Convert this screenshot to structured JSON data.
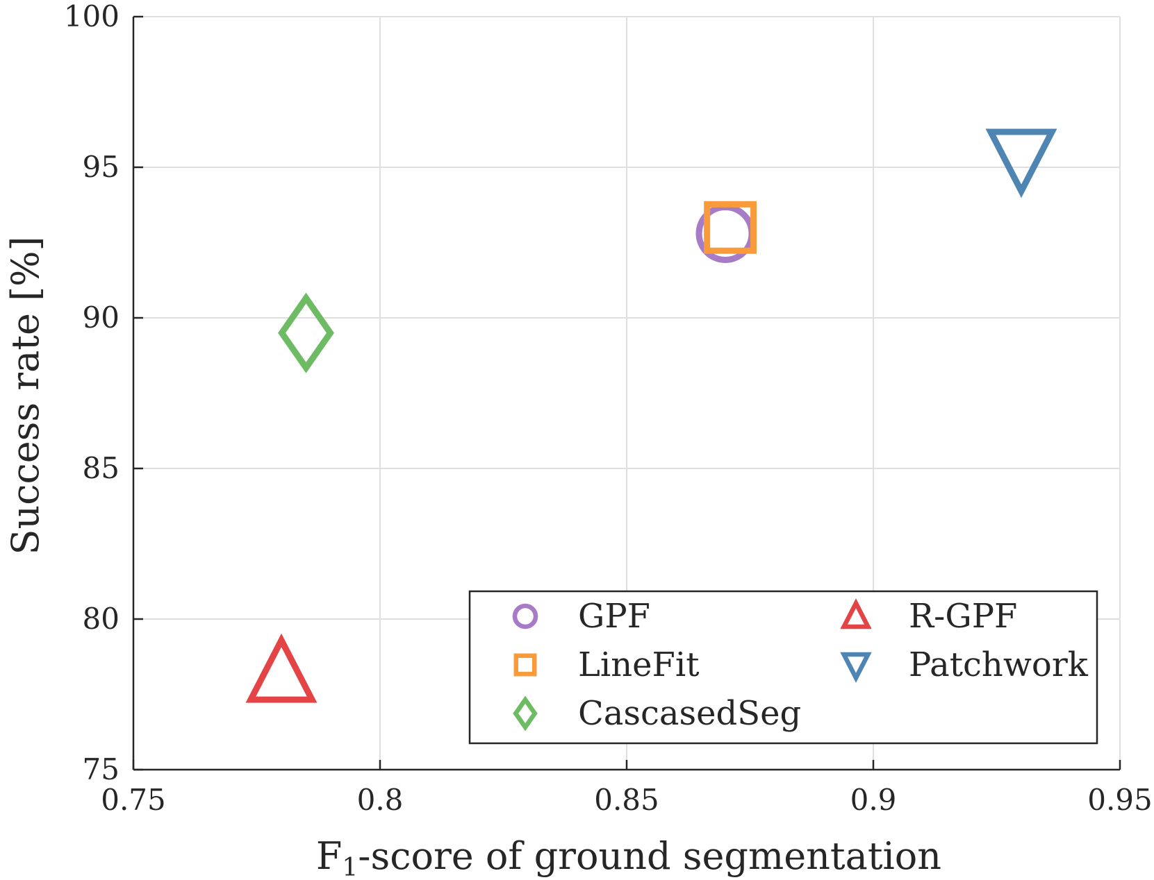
{
  "chart_data": {
    "type": "scatter",
    "xlabel_main": "F",
    "xlabel_sub": "1",
    "xlabel_rest": "-score of ground segmentation",
    "ylabel": "Success rate [%]",
    "xlim": [
      0.75,
      0.95
    ],
    "ylim": [
      75,
      100
    ],
    "xticks": [
      "0.75",
      "0.8",
      "0.85",
      "0.9",
      "0.95"
    ],
    "yticks": [
      "75",
      "80",
      "85",
      "90",
      "95",
      "100"
    ],
    "grid": true,
    "legend_position": "bottom-right",
    "series": [
      {
        "name": "GPF",
        "marker": "circle",
        "color": "#a77bc5",
        "x": 0.87,
        "y": 92.8
      },
      {
        "name": "LineFit",
        "marker": "square",
        "color": "#f99b3a",
        "x": 0.871,
        "y": 93.0
      },
      {
        "name": "CascasedSeg",
        "marker": "diamond",
        "color": "#6dbb62",
        "x": 0.785,
        "y": 89.5
      },
      {
        "name": "R-GPF",
        "marker": "triangle-up",
        "color": "#e44446",
        "x": 0.78,
        "y": 78.2
      },
      {
        "name": "Patchwork",
        "marker": "triangle-down",
        "color": "#4f85b3",
        "x": 0.93,
        "y": 95.3
      }
    ]
  }
}
